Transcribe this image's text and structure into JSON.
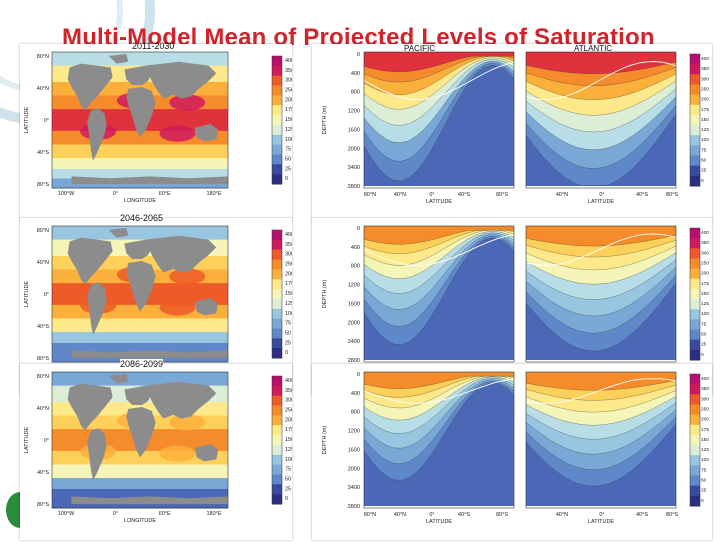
{
  "slide": {
    "title": "Multi-Model Mean of Projected Levels of Saturation"
  },
  "colors": {
    "title": "#d2232a",
    "land": "#8c8c8c",
    "scale": [
      "#2d2e82",
      "#3a4aa0",
      "#4a68b5",
      "#5f88c8",
      "#7aa8d6",
      "#98c6e0",
      "#b8dde6",
      "#dcefd6",
      "#f5f5b8",
      "#fde98a",
      "#fdd05a",
      "#fbb03b",
      "#f68b2c",
      "#ee5a28",
      "#e0323c",
      "#d01a5c",
      "#b70f6e"
    ]
  },
  "chart_data": [
    {
      "type": "heatmap",
      "period": "2011-2030",
      "xlabel": "LONGITUDE",
      "ylabel": "LATITUDE",
      "xticks": [
        "100°W",
        "0°",
        "60°E",
        "180°E"
      ],
      "yticks": [
        "80°N",
        "40°N",
        "0°",
        "40°S",
        "80°S"
      ],
      "colorbar": [
        "400",
        "350",
        "300",
        "250",
        "200",
        "175",
        "150",
        "125",
        "100",
        "75",
        "50",
        "25",
        "0"
      ]
    },
    {
      "type": "heatmap",
      "period": "2046-2065",
      "xlabel": "LONGITUDE",
      "ylabel": "LATITUDE",
      "xticks": [
        "100°W",
        "0°",
        "60°E",
        "180°E"
      ],
      "yticks": [
        "80°N",
        "40°N",
        "0°",
        "40°S",
        "80°S"
      ],
      "colorbar": [
        "400",
        "350",
        "300",
        "250",
        "200",
        "175",
        "150",
        "125",
        "100",
        "75",
        "50",
        "25",
        "0"
      ]
    },
    {
      "type": "heatmap",
      "period": "2086-2099",
      "xlabel": "LONGITUDE",
      "ylabel": "LATITUDE",
      "xticks": [
        "100°W",
        "0°",
        "60°E",
        "180°E"
      ],
      "yticks": [
        "80°N",
        "40°N",
        "0°",
        "40°S",
        "80°S"
      ],
      "colorbar": [
        "400",
        "350",
        "300",
        "250",
        "200",
        "175",
        "150",
        "125",
        "100",
        "75",
        "50",
        "25",
        "0"
      ]
    },
    {
      "type": "heatmap",
      "sections": [
        "PACIFIC",
        "ATLANTIC"
      ],
      "xlabel": "LATITUDE",
      "ylabel": "DEPTH (m)",
      "yticks": [
        "0",
        "400",
        "800",
        "1200",
        "1600",
        "2000",
        "2400",
        "2800"
      ],
      "xticks": [
        "80°N",
        "40°N",
        "0°",
        "40°S",
        "80°S",
        "40°N",
        "0°",
        "40°S",
        "80°S"
      ],
      "colorbar": [
        "400",
        "350",
        "300",
        "250",
        "200",
        "175",
        "150",
        "125",
        "100",
        "75",
        "50",
        "25",
        "0"
      ]
    }
  ]
}
